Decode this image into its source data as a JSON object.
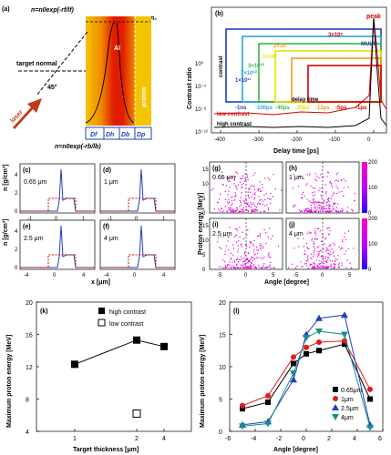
{
  "panel_a": {
    "label": "(a)",
    "front_formula": "n=n₀exp(-rᵥ/lᵥ)",
    "front_formula_text": "n=n0exp(-rf/lf)",
    "back_formula_text": "n=n0exp(-rb/lb)",
    "n0": "n₀",
    "target_normal": "target normal",
    "laser": "laser",
    "angle": "45°",
    "al": "Al",
    "proton": "proton",
    "regions": [
      "Df",
      "Dh",
      "Db",
      "Dp"
    ],
    "colors": {
      "laser": "#e8501a",
      "layer": "#f5c400",
      "arrow": "#c0391b"
    }
  },
  "panel_b": {
    "label": "(b)",
    "ylabel": "Contrast ratio",
    "xlabel": "Delay time [ps]",
    "peak": "peak",
    "multi": "MULTI",
    "high_contrast": "high contrast",
    "low_contrast": "low contrast",
    "contrast": "contrast",
    "delay_time": "delay time",
    "x_ticks": [
      "-400",
      "-300",
      "-200",
      "-100",
      "0"
    ],
    "y_ticks": [
      "10⁰",
      "10⁻⁴",
      "10⁻⁸",
      "10⁻¹²"
    ],
    "contrast_values": [
      "1×10¹¹",
      "7×10¹⁰",
      "3×10¹⁰",
      "1×10⁹",
      "2×10⁷",
      "3×10⁶"
    ],
    "delays": [
      "-1ns",
      "-100ps",
      "-40ps",
      "-20ps",
      "-12ps",
      "-5ps",
      "-1ps"
    ],
    "colors": [
      "#1f3fbf",
      "#2aa6d8",
      "#3bb54a",
      "#e5e500",
      "#f39c12",
      "#d40000"
    ]
  },
  "panels_cf": [
    {
      "label": "(c)",
      "thickness": "0.65 μm"
    },
    {
      "label": "(d)",
      "thickness": "1 μm"
    },
    {
      "label": "(e)",
      "thickness": "2.5 μm"
    },
    {
      "label": "(f)",
      "thickness": "4 μm"
    }
  ],
  "cf_axes": {
    "ylabel": "n [g/cm³]",
    "xlabel": "x [μm]",
    "y_ticks": [
      "0",
      "2",
      "4"
    ],
    "x_ticks": [
      "-4",
      "0",
      "4"
    ],
    "x_ticks_top": [
      "-1",
      "0",
      "1"
    ]
  },
  "panels_gj": [
    {
      "label": "(g)",
      "thickness": "0.65 μm"
    },
    {
      "label": "(h)",
      "thickness": "1 μm"
    },
    {
      "label": "(i)",
      "thickness": "2.5 μm"
    },
    {
      "label": "(j)",
      "thickness": "4 μm"
    }
  ],
  "gj_axes": {
    "ylabel": "Proton energy [MeV]",
    "xlabel": "Angle [degree]",
    "y_ticks": [
      "0",
      "5",
      "10",
      "15"
    ],
    "x_ticks": [
      "-5",
      "0",
      "5"
    ],
    "colorbar": [
      "0",
      "100",
      "200"
    ]
  },
  "chart_data": [
    {
      "type": "scatter",
      "label": "(k)",
      "xlabel": "Target thickness [μm]",
      "ylabel": "Maximum proton energy [MeV]",
      "x_ticks": [
        "1",
        "2",
        "4"
      ],
      "y_ticks": [
        "4",
        "8",
        "12",
        "16",
        "20"
      ],
      "ylim": [
        4,
        20
      ],
      "series": [
        {
          "name": "high contrast",
          "x": [
            0.65,
            2.5,
            4
          ],
          "values": [
            12.3,
            15.3,
            14.5
          ]
        },
        {
          "name": "low contrast",
          "x": [
            2.5
          ],
          "values": [
            6.2
          ]
        }
      ]
    },
    {
      "type": "line",
      "label": "(l)",
      "xlabel": "Angle [degree]",
      "ylabel": "Maximum proton energy [MeV]",
      "x": [
        -5,
        -3,
        -1,
        0,
        1,
        3,
        5
      ],
      "xlim": [
        -6,
        6
      ],
      "ylim": [
        0,
        20
      ],
      "x_ticks": [
        "-6",
        "-4",
        "-2",
        "0",
        "2",
        "4",
        "6"
      ],
      "y_ticks": [
        "0",
        "5",
        "10",
        "15",
        "20"
      ],
      "series": [
        {
          "name": "0.65μm",
          "color": "#000000",
          "marker": "square",
          "values": [
            3.5,
            4.5,
            10.5,
            12.0,
            12.5,
            13.5,
            5.0
          ]
        },
        {
          "name": "1μm",
          "color": "#e31a1c",
          "marker": "circle",
          "values": [
            4.0,
            5.5,
            11.5,
            13.0,
            13.8,
            14.0,
            6.5
          ]
        },
        {
          "name": "2.5μm",
          "color": "#1f3fbf",
          "marker": "triangle",
          "values": [
            1.0,
            1.5,
            8.0,
            15.0,
            17.5,
            18.0,
            1.0
          ]
        },
        {
          "name": "4μm",
          "color": "#178f8f",
          "marker": "tri-down",
          "values": [
            0.8,
            1.2,
            9.0,
            14.5,
            15.5,
            15.0,
            0.6
          ]
        }
      ]
    }
  ]
}
